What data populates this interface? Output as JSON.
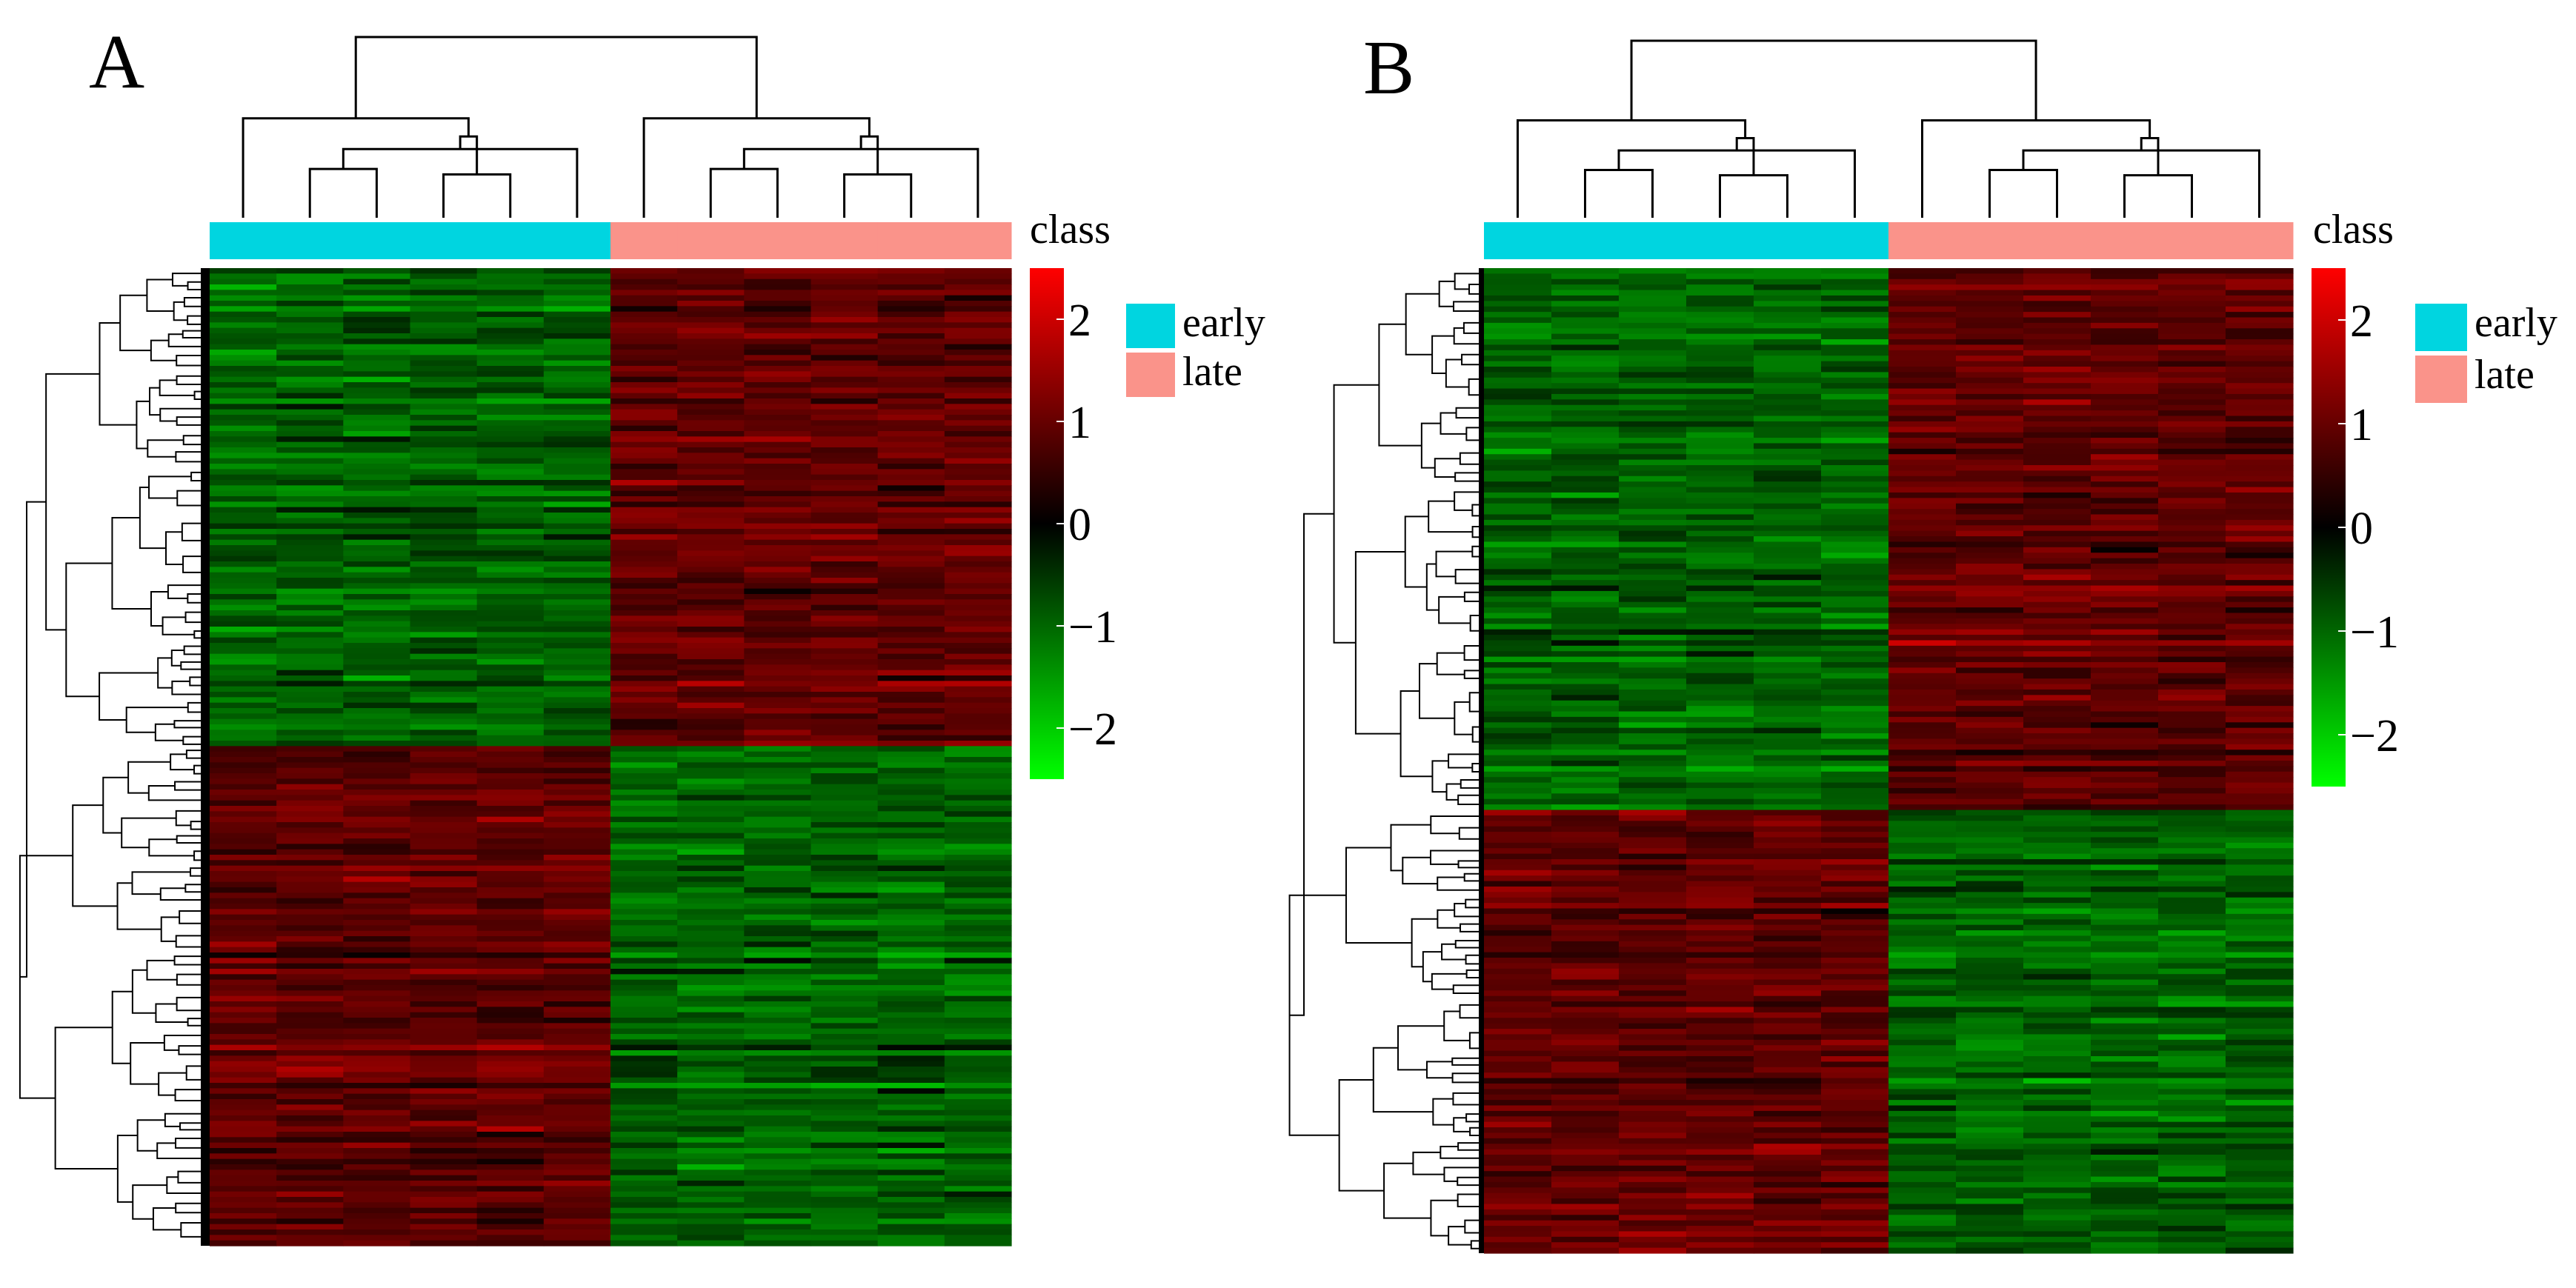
{
  "chart_data": [
    {
      "type": "heatmap",
      "panel_label": "A",
      "annotation_title": "class",
      "columns": 12,
      "column_classes": [
        "early",
        "early",
        "early",
        "early",
        "early",
        "early",
        "late",
        "late",
        "late",
        "late",
        "late",
        "late"
      ],
      "row_clusters": [
        {
          "fraction": 0.49,
          "early_pattern": "low",
          "late_pattern": "high"
        },
        {
          "fraction": 0.51,
          "early_pattern": "high",
          "late_pattern": "low"
        }
      ],
      "legend": [
        {
          "label": "early",
          "color": "#00D5E0"
        },
        {
          "label": "late",
          "color": "#FA938A"
        }
      ],
      "color_scale": {
        "range": [
          -2.5,
          2.5
        ],
        "ticks": [
          2,
          1,
          0,
          -1,
          -2
        ],
        "tick_labels": [
          "2",
          "1",
          "0",
          "−1",
          "−2"
        ],
        "low_color": "#00FF00",
        "mid_color": "#000000",
        "high_color": "#FF0000"
      }
    },
    {
      "type": "heatmap",
      "panel_label": "B",
      "annotation_title": "class",
      "columns": 12,
      "column_classes": [
        "early",
        "early",
        "early",
        "early",
        "early",
        "early",
        "late",
        "late",
        "late",
        "late",
        "late",
        "late"
      ],
      "row_clusters": [
        {
          "fraction": 0.55,
          "early_pattern": "low",
          "late_pattern": "high"
        },
        {
          "fraction": 0.45,
          "early_pattern": "high",
          "late_pattern": "low"
        }
      ],
      "legend": [
        {
          "label": "early",
          "color": "#00D5E0"
        },
        {
          "label": "late",
          "color": "#FA938A"
        }
      ],
      "color_scale": {
        "range": [
          -2.5,
          2.5
        ],
        "ticks": [
          2,
          1,
          0,
          -1,
          -2
        ],
        "tick_labels": [
          "2",
          "1",
          "0",
          "−1",
          "−2"
        ],
        "low_color": "#00FF00",
        "mid_color": "#000000",
        "high_color": "#FF0000"
      }
    }
  ]
}
